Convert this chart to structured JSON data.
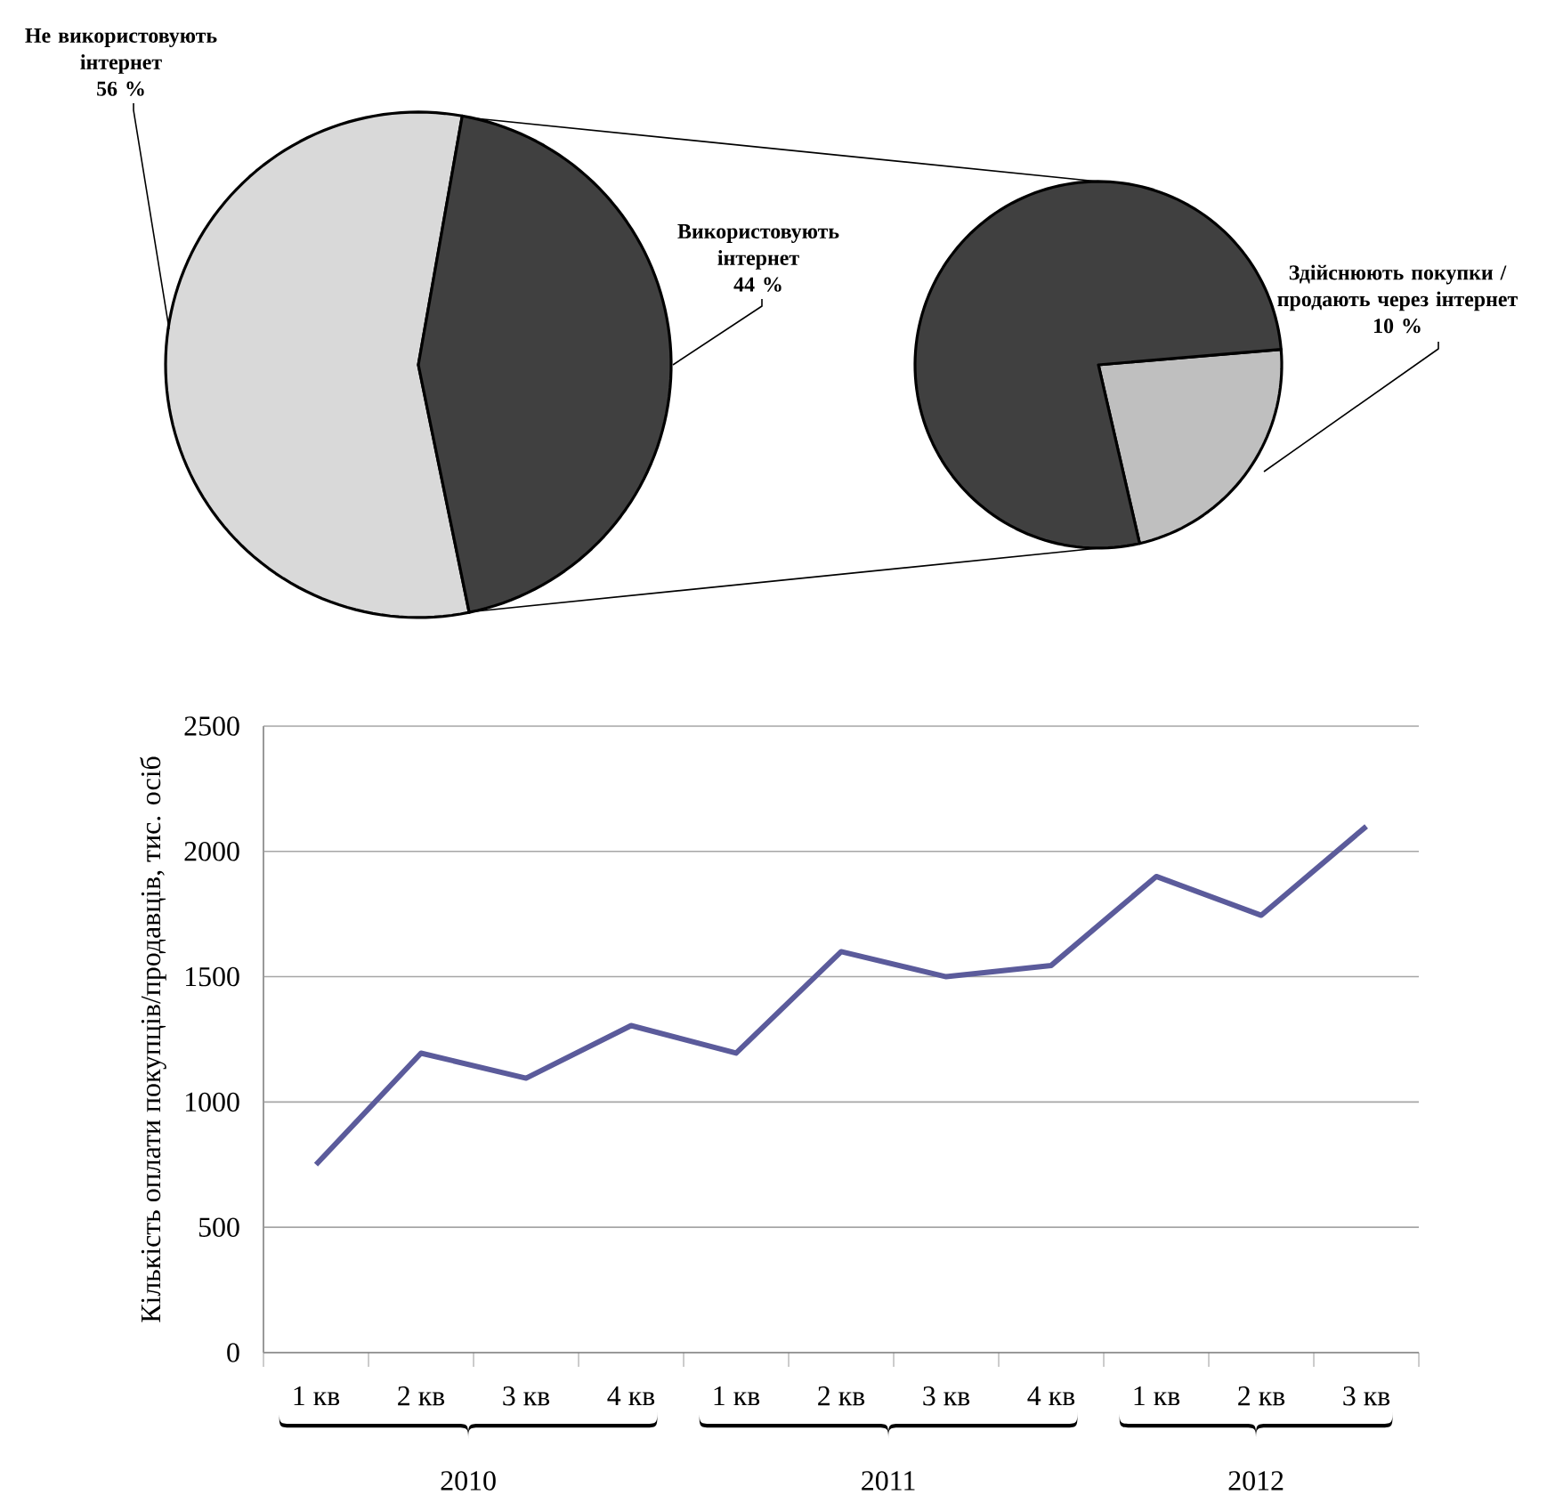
{
  "chart_data": [
    {
      "type": "pie",
      "categories": [
        "Не використовують інтернет",
        "Використовують інтернет"
      ],
      "values": [
        56,
        44
      ],
      "value_labels": [
        "56 %",
        "44 %"
      ],
      "colors": [
        "#d9d9d9",
        "#404040"
      ]
    },
    {
      "type": "pie",
      "categories": [
        "Здійснюють покупки / продають через інтернет",
        null
      ],
      "values": [
        10,
        34
      ],
      "value_labels": [
        "10 %",
        null
      ],
      "colors": [
        "#bfbfbf",
        "#404040"
      ]
    },
    {
      "type": "line",
      "categories": [
        "1 кв",
        "2 кв",
        "3 кв",
        "4 кв",
        "1 кв",
        "2 кв",
        "3 кв",
        "4 кв",
        "1 кв",
        "2 кв",
        "3 кв"
      ],
      "values": [
        750,
        1195,
        1095,
        1305,
        1195,
        1600,
        1500,
        1545,
        1900,
        1745,
        2100
      ],
      "color": "#5b5b9b",
      "ylabel": "Кількість оплати покупців/продавців, тис. осіб",
      "ylim": [
        0,
        2500
      ],
      "yticks": [
        0,
        500,
        1000,
        1500,
        2000,
        2500
      ],
      "grid": "y",
      "annotations": [
        "2010",
        "2011",
        "2012"
      ]
    }
  ]
}
